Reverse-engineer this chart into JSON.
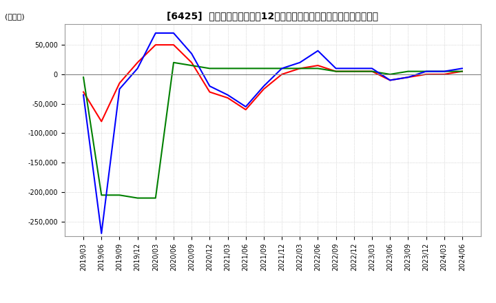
{
  "title": "[6425]  キャッシュフローの12か月移動合計の対前年同期増減額の推移",
  "ylabel": "(百万円)",
  "ylim": [
    -275000,
    85000
  ],
  "yticks": [
    50000,
    0,
    -50000,
    -100000,
    -150000,
    -200000,
    -250000
  ],
  "colors": {
    "営業CF": "#ff0000",
    "投資CF": "#008000",
    "フリーCF": "#0000ff"
  },
  "x_labels": [
    "2019/03",
    "2019/06",
    "2019/09",
    "2019/12",
    "2020/03",
    "2020/06",
    "2020/09",
    "2020/12",
    "2021/03",
    "2021/06",
    "2021/09",
    "2021/12",
    "2022/03",
    "2022/06",
    "2022/09",
    "2022/12",
    "2023/03",
    "2023/06",
    "2023/09",
    "2023/12",
    "2024/03",
    "2024/06"
  ],
  "営業CF": [
    -30000,
    -80000,
    -15000,
    20000,
    50000,
    50000,
    20000,
    -30000,
    -40000,
    -60000,
    -25000,
    0,
    10000,
    15000,
    5000,
    5000,
    5000,
    -10000,
    -5000,
    0,
    0,
    5000
  ],
  "投資CF": [
    -5000,
    -205000,
    -205000,
    -210000,
    -210000,
    20000,
    15000,
    10000,
    10000,
    10000,
    10000,
    10000,
    10000,
    10000,
    5000,
    5000,
    5000,
    0,
    5000,
    5000,
    5000,
    5000
  ],
  "フリーCF": [
    -35000,
    -270000,
    -25000,
    10000,
    70000,
    70000,
    35000,
    -20000,
    -35000,
    -55000,
    -20000,
    10000,
    20000,
    40000,
    10000,
    10000,
    10000,
    -10000,
    -5000,
    5000,
    5000,
    10000
  ],
  "background_color": "#ffffff",
  "grid_color": "#bbbbbb",
  "linewidth": 1.5,
  "title_fontsize": 10,
  "tick_fontsize": 7,
  "ylabel_fontsize": 8,
  "legend_fontsize": 9
}
